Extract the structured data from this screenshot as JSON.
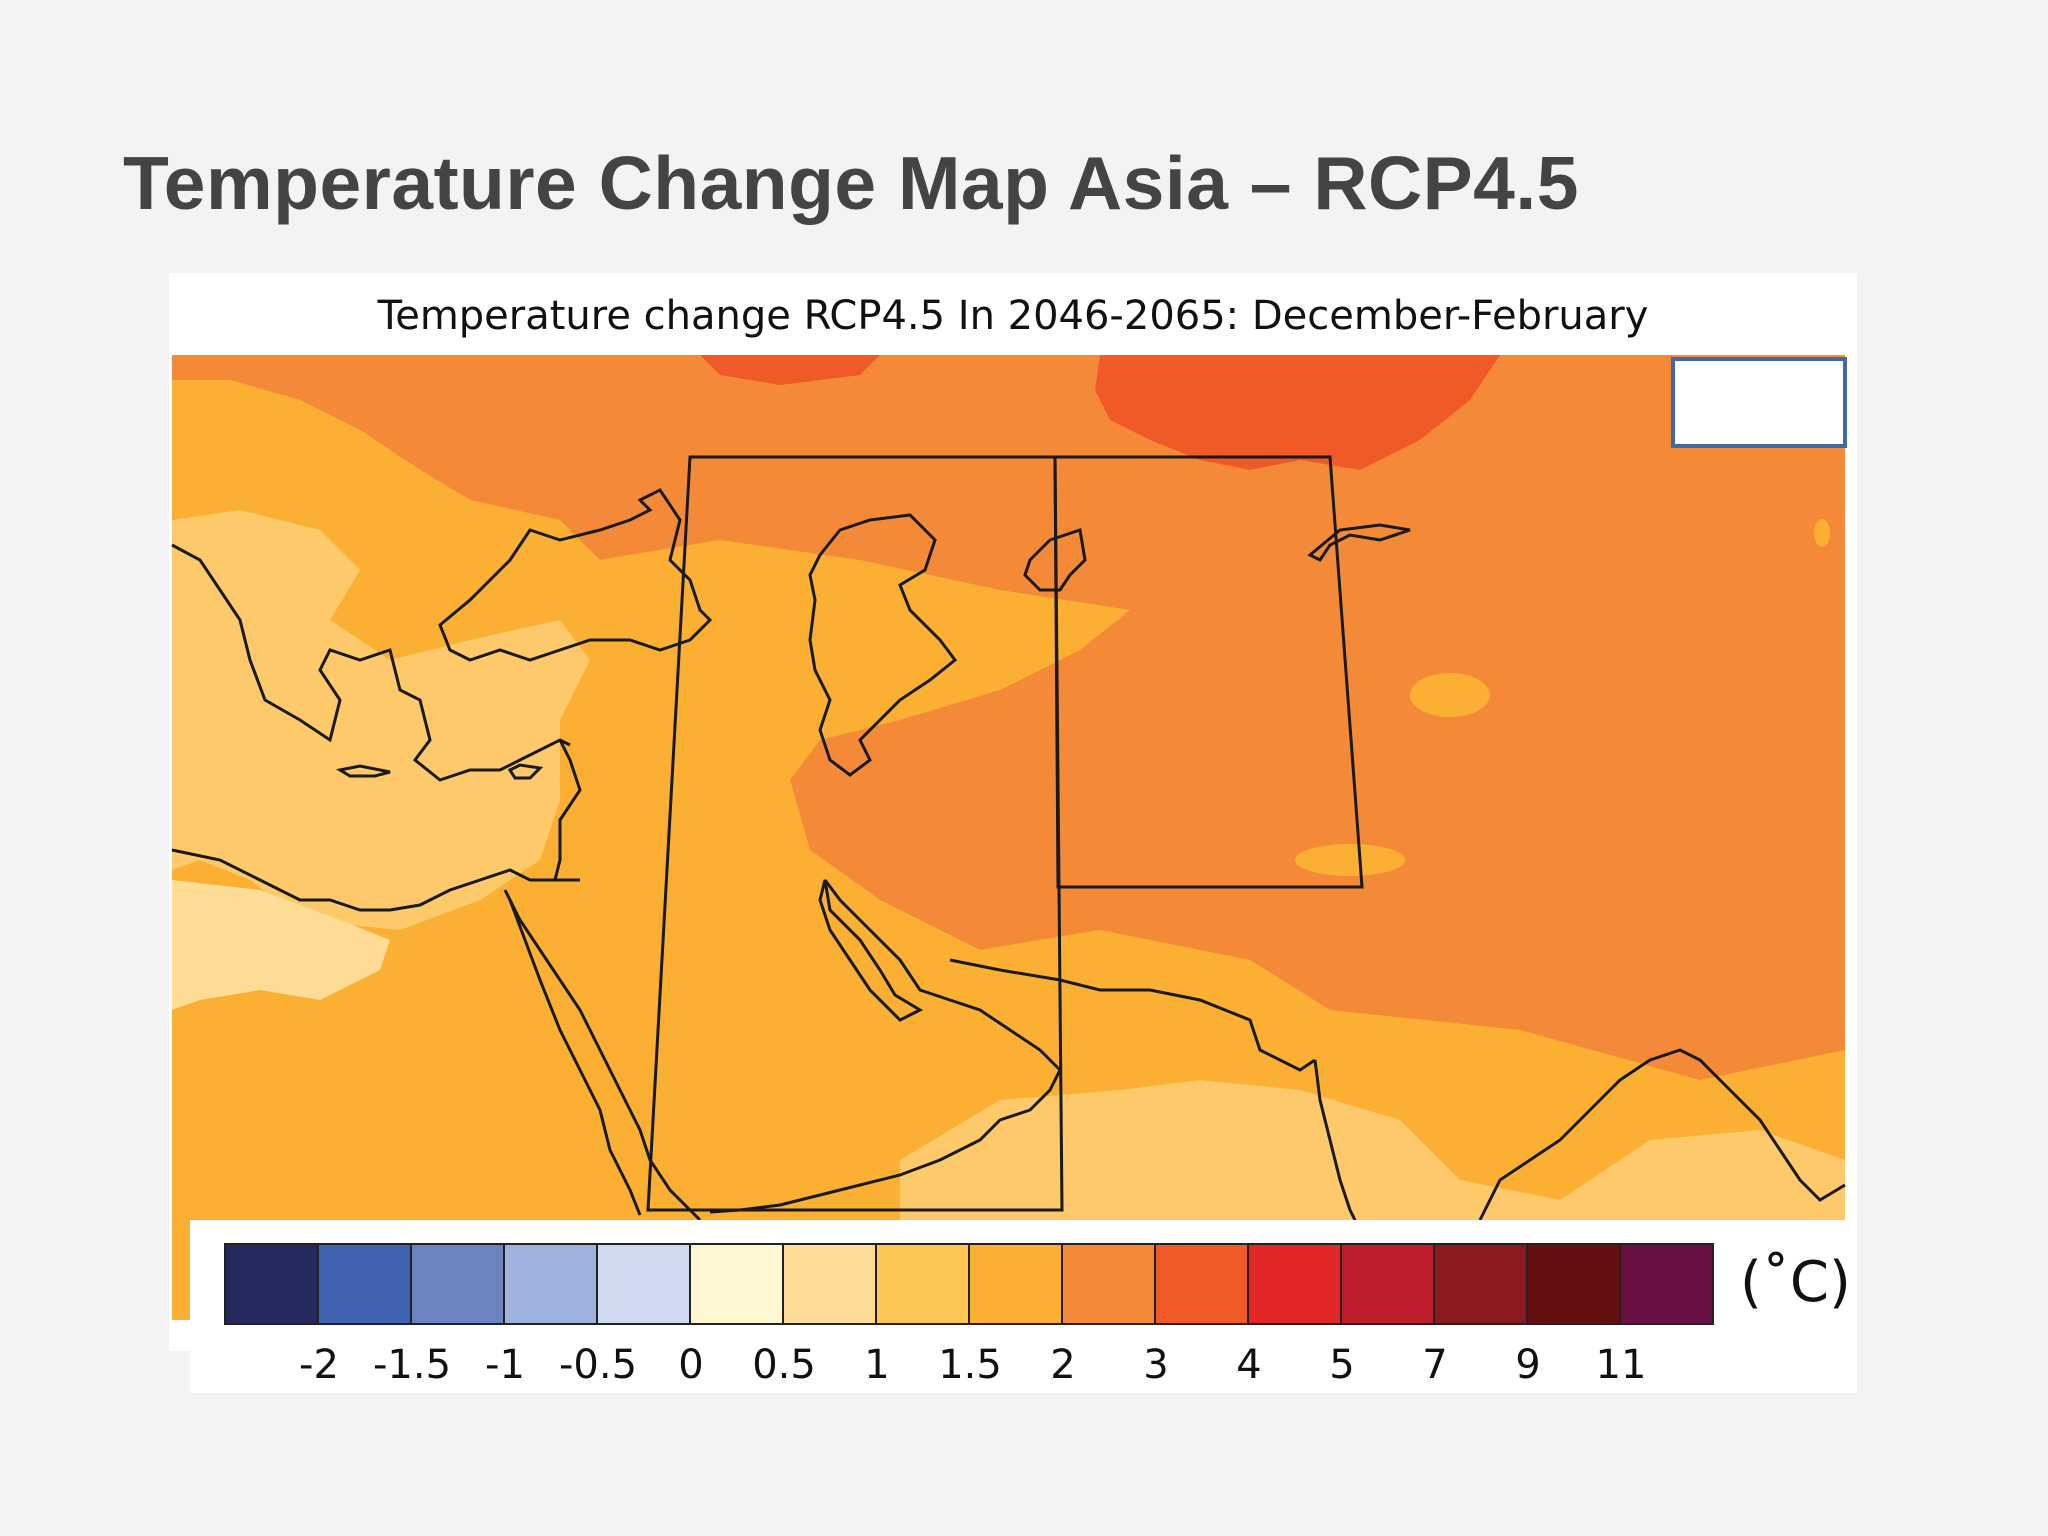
{
  "slide": {
    "title": "Temperature Change Map Asia – RCP4.5"
  },
  "map": {
    "title": "Temperature change RCP4.5 In 2046-2065: December-February",
    "region_boxes": 2
  },
  "legend": {
    "unit": "(˚C)",
    "swatches": [
      {
        "color": "#242a5e"
      },
      {
        "color": "#3f63ae"
      },
      {
        "color": "#6b84bf"
      },
      {
        "color": "#9fb2de"
      },
      {
        "color": "#cfd9ef"
      },
      {
        "color": "#fff6d2"
      },
      {
        "color": "#fedc96"
      },
      {
        "color": "#fdc655"
      },
      {
        "color": "#fbb033"
      },
      {
        "color": "#f48a38"
      },
      {
        "color": "#ef5a28"
      },
      {
        "color": "#e32726"
      },
      {
        "color": "#bd1c2a"
      },
      {
        "color": "#8c1920"
      },
      {
        "color": "#650f13"
      },
      {
        "color": "#6a1043"
      }
    ],
    "ticks": [
      "-2",
      "-1.5",
      "-1",
      "-0.5",
      "0",
      "0.5",
      "1",
      "1.5",
      "2",
      "3",
      "4",
      "5",
      "7",
      "9",
      "11"
    ]
  },
  "colors": {
    "field_light": "#fdc96a",
    "field_mid": "#fbb033",
    "field_warm": "#f48a38",
    "field_hot": "#ef5a28",
    "highlight_border": "#3f6aa3"
  }
}
